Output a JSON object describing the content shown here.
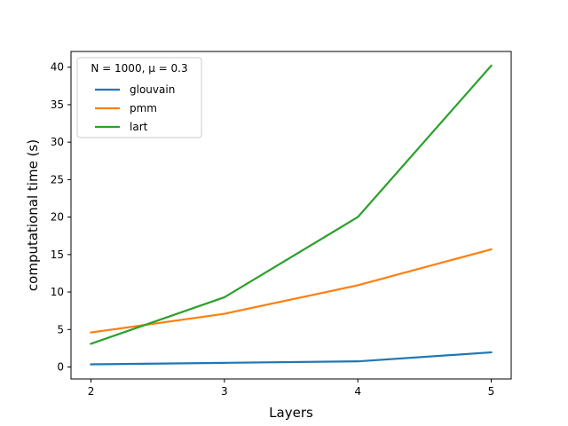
{
  "chart_data": {
    "type": "line",
    "title": "",
    "xlabel": "Layers",
    "ylabel": "computational time (s)",
    "x": [
      2,
      3,
      4,
      5
    ],
    "xticks": [
      "2",
      "3",
      "4",
      "5"
    ],
    "xlim": [
      1.85,
      5.15
    ],
    "ylim": [
      -1.6,
      42.1
    ],
    "yticks": [
      "0",
      "5",
      "10",
      "15",
      "20",
      "25",
      "30",
      "35",
      "40"
    ],
    "legend": {
      "title": "N = 1000, μ = 0.3",
      "placement": "upper-left"
    },
    "grid": false,
    "series": [
      {
        "name": "glouvain",
        "color": "#1f77b4",
        "values": [
          0.35,
          0.55,
          0.75,
          1.95
        ]
      },
      {
        "name": "pmm",
        "color": "#ff7f0e",
        "values": [
          4.6,
          7.1,
          10.9,
          15.7
        ]
      },
      {
        "name": "lart",
        "color": "#2ca02c",
        "values": [
          3.1,
          9.3,
          20.0,
          40.2
        ]
      }
    ]
  }
}
